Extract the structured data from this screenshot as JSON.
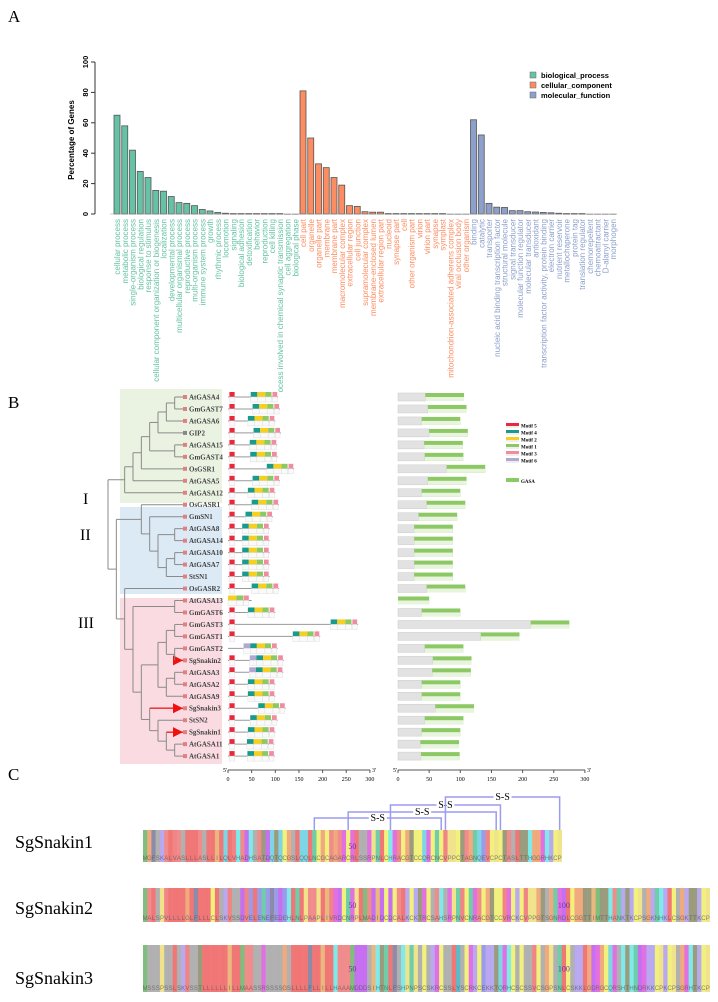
{
  "panel_labels": {
    "a": "A",
    "b": "B",
    "c": "C"
  },
  "chart_data": {
    "type": "bar",
    "ylabel": "Percentage of Genes",
    "xlabel": "",
    "ylim": [
      0,
      100
    ],
    "yticks": [
      0,
      20,
      40,
      60,
      80,
      100
    ],
    "grid": false,
    "legend_position": "top-right",
    "series": [
      {
        "name": "biological_process",
        "color": "#66c2a5",
        "categories": [
          "cellular process",
          "metabolic process",
          "single-organism process",
          "biological regulation",
          "response to stimulus",
          "cellular component organization or biogenesis",
          "localization",
          "developmental process",
          "multicellular organismal process",
          "reproductive process",
          "multi-organism process",
          "immune system process",
          "growth",
          "rhythmic process",
          "locomotion",
          "signaling",
          "biological adhesion",
          "detoxification",
          "behavior",
          "reproduction",
          "cell killing",
          "ocess involved in chemical synaptic transmission",
          "cell aggregation",
          "biological phase"
        ],
        "values": [
          65,
          58,
          42,
          28,
          24,
          15.5,
          15,
          11.5,
          7.5,
          7,
          5.5,
          3,
          2,
          1,
          0.5,
          0.3,
          0.3,
          0.3,
          0.3,
          0.3,
          0.3,
          0.3,
          0,
          0
        ]
      },
      {
        "name": "cellular_component",
        "color": "#fc8d62",
        "categories": [
          "cell part",
          "organelle",
          "organelle part",
          "membrane",
          "membrane part",
          "macromolecular complex",
          "extracellular region",
          "cell junction",
          "supramolecular complex",
          "membrane-enclosed lumen",
          "extracellular region part",
          "nucleoid",
          "synapse part",
          "cell",
          "other organism part",
          "virion",
          "virion part",
          "synapse",
          "symplast",
          "mitochondrion-associated adherens complex",
          "viral occlusion body",
          "other organism"
        ],
        "values": [
          81,
          50,
          33,
          30.5,
          24,
          19,
          5.5,
          5,
          1.5,
          1.2,
          1.2,
          0.3,
          0.3,
          0.3,
          0.3,
          0.3,
          0.3,
          0.3,
          0.3,
          0,
          0,
          0
        ]
      },
      {
        "name": "molecular_function",
        "color": "#8da0cb",
        "categories": [
          "binding",
          "catalytic",
          "transporter",
          "nucleic acid binding transcription factor",
          "structural molecule",
          "signal transducer",
          "molecular function regulator",
          "molecular transducer",
          "antioxidant",
          "transcription factor activity, protein binding",
          "electron carrier",
          "nutrient reservoir",
          "metallochaperone",
          "protein tag",
          "translation regulator",
          "chemorepellent",
          "chemoattractant",
          "D-alanyl carrier",
          "morphogen"
        ],
        "values": [
          62,
          52,
          7,
          4.5,
          4.3,
          2.2,
          2.2,
          1.5,
          1.3,
          1,
          0.8,
          0.5,
          0.3,
          0.3,
          0.3,
          0,
          0,
          0,
          0
        ]
      }
    ]
  },
  "panel_b": {
    "groups": [
      "I",
      "II",
      "III"
    ],
    "group_colors": [
      "#eaf3e2",
      "#dceaf5",
      "#fadbe2"
    ],
    "tree": [
      [
        [
          [
            [
              [
                [
                  [
                    "AtGASA4",
                    "GmGAST7"
                  ],
                  "AtGASA6"
                ],
                "GIP2"
              ],
              [
                "AtGASA15",
                "GmGAST4"
              ]
            ],
            "OsGSR1"
          ],
          "AtGASA5"
        ],
        "AtGASA12"
      ],
      [
        [
          "OsGASR1",
          [
            "GmSN1",
            [
              [
                "AtGASA8",
                "AtGASA14"
              ],
              [
                [
                  "AtGASA10",
                  "AtGASA7"
                ],
                "StSN1"
              ]
            ]
          ]
        ],
        [
          "OsGASR2",
          [
            [
              "AtGASA13",
              "GmGAST6"
            ],
            [
              [
                [
                  [
                    "GmGAST3",
                    "GmGAST1"
                  ],
                  [
                    "GmGAST2",
                    "SgSnakin2"
                  ]
                ],
                [
                  [
                    "AtGASA3",
                    "AtGASA2"
                  ],
                  "AtGASA9"
                ]
              ],
              [
                "SgSnakin3",
                [
                  "StSN2",
                  [
                    "SgSnakin1",
                    [
                      "AtGASA11",
                      "AtGASA1"
                    ]
                  ]
                ]
              ]
            ]
          ]
        ]
      ]
    ],
    "highlighted": [
      "SgSnakin2",
      "SgSnakin3",
      "SgSnakin1"
    ],
    "genes": [
      {
        "name": "AtGASA4",
        "length": 106,
        "motifs": [
          "5",
          "4",
          "2",
          "1",
          "3"
        ]
      },
      {
        "name": "GmGAST7",
        "length": 110,
        "motifs": [
          "5",
          "4",
          "2",
          "1",
          "3"
        ]
      },
      {
        "name": "AtGASA6",
        "length": 100,
        "motifs": [
          "5",
          "4",
          "2",
          "1",
          "3"
        ]
      },
      {
        "name": "GIP2",
        "length": 112,
        "motifs": [
          "5",
          "4",
          "2",
          "1",
          "3"
        ]
      },
      {
        "name": "AtGASA15",
        "length": 104,
        "motifs": [
          "5",
          "4",
          "2",
          "1",
          "3"
        ]
      },
      {
        "name": "GmGAST4",
        "length": 105,
        "motifs": [
          "5",
          "4",
          "2",
          "1",
          "3"
        ]
      },
      {
        "name": "OsGSR1",
        "length": 140,
        "motifs": [
          "5",
          "4",
          "2",
          "1",
          "3"
        ]
      },
      {
        "name": "AtGASA5",
        "length": 110,
        "motifs": [
          "5",
          "4",
          "2",
          "1",
          "3"
        ]
      },
      {
        "name": "AtGASA12",
        "length": 100,
        "motifs": [
          "5",
          "4",
          "2",
          "1",
          "3"
        ]
      },
      {
        "name": "OsGASR1",
        "length": 108,
        "motifs": [
          "5",
          "4",
          "2",
          "1",
          "3"
        ]
      },
      {
        "name": "GmSN1",
        "length": 95,
        "motifs": [
          "5",
          "4",
          "2",
          "1",
          "3"
        ]
      },
      {
        "name": "AtGASA8",
        "length": 88,
        "motifs": [
          "5",
          "4",
          "2",
          "1",
          "3"
        ]
      },
      {
        "name": "AtGASA14",
        "length": 88,
        "motifs": [
          "5",
          "4",
          "2",
          "1",
          "3"
        ]
      },
      {
        "name": "AtGASA10",
        "length": 88,
        "motifs": [
          "5",
          "4",
          "2",
          "1",
          "3"
        ]
      },
      {
        "name": "AtGASA7",
        "length": 88,
        "motifs": [
          "5",
          "4",
          "2",
          "1",
          "3"
        ]
      },
      {
        "name": "StSN1",
        "length": 88,
        "motifs": [
          "5",
          "4",
          "2",
          "1",
          "3"
        ]
      },
      {
        "name": "OsGASR2",
        "length": 108,
        "motifs": [
          "5",
          "4",
          "2",
          "1",
          "3"
        ]
      },
      {
        "name": "AtGASA13",
        "length": 50,
        "motifs": [
          "2",
          "1",
          "3"
        ]
      },
      {
        "name": "GmGAST6",
        "length": 100,
        "motifs": [
          "5",
          "4",
          "2",
          "1",
          "3"
        ]
      },
      {
        "name": "GmGAST3",
        "length": 275,
        "motifs": [
          "5",
          "4",
          "2",
          "1",
          "3"
        ]
      },
      {
        "name": "GmGAST1",
        "length": 195,
        "motifs": [
          "5",
          "4",
          "2",
          "1",
          "3"
        ]
      },
      {
        "name": "GmGAST2",
        "length": 105,
        "motifs": [
          "6",
          "4",
          "2",
          "1",
          "3"
        ]
      },
      {
        "name": "SgSnakin2",
        "length": 118,
        "motifs": [
          "5",
          "6",
          "4",
          "2",
          "1",
          "3"
        ]
      },
      {
        "name": "AtGASA3",
        "length": 117,
        "motifs": [
          "5",
          "6",
          "4",
          "2",
          "1",
          "3"
        ]
      },
      {
        "name": "AtGASA2",
        "length": 100,
        "motifs": [
          "5",
          "4",
          "2",
          "1",
          "3"
        ]
      },
      {
        "name": "AtGASA9",
        "length": 100,
        "motifs": [
          "5",
          "4",
          "2",
          "1",
          "3"
        ]
      },
      {
        "name": "SgSnakin3",
        "length": 122,
        "motifs": [
          "5",
          "4",
          "2",
          "1",
          "3"
        ]
      },
      {
        "name": "StSN2",
        "length": 105,
        "motifs": [
          "5",
          "4",
          "2",
          "1",
          "3"
        ]
      },
      {
        "name": "SgSnakin1",
        "length": 100,
        "motifs": [
          "5",
          "4",
          "2",
          "1",
          "3"
        ]
      },
      {
        "name": "AtGASA11",
        "length": 98,
        "motifs": [
          "5",
          "4",
          "2",
          "1",
          "3"
        ]
      },
      {
        "name": "AtGASA1",
        "length": 99,
        "motifs": [
          "5",
          "4",
          "2",
          "1",
          "3"
        ]
      }
    ],
    "motif_legend": [
      {
        "id": "5",
        "label": "Motif 5",
        "color": "#e8283c"
      },
      {
        "id": "4",
        "label": "Motif 4",
        "color": "#1a9a8c"
      },
      {
        "id": "2",
        "label": "Motif 2",
        "color": "#f5d020"
      },
      {
        "id": "1",
        "label": "Motif 1",
        "color": "#8cc864"
      },
      {
        "id": "3",
        "label": "Motif 3",
        "color": "#f08ca0"
      },
      {
        "id": "6",
        "label": "Motif 6",
        "color": "#b0a8d0"
      }
    ],
    "domain_legend": {
      "label": "GASA",
      "color": "#8cc864"
    },
    "axis_ticks": [
      0,
      50,
      100,
      150,
      200,
      250,
      300
    ],
    "axis_start": "5'",
    "axis_end": "3'"
  },
  "panel_c": {
    "bond_label": "S-S",
    "bonds": [
      [
        40,
        70
      ],
      [
        48,
        83
      ],
      [
        58,
        84
      ],
      [
        71,
        98
      ]
    ],
    "rows": [
      {
        "name": "SgSnakin1",
        "sequence": "MGFSKALVASLLLASLLILQLVHADHSATDQTQCGSLQQLNCGCAGARCRLSSRPNLCHRACGTCCQRCNCVPPCTAGNQEVCPCTASLTTHGGRHKCP",
        "markers": [
          50
        ]
      },
      {
        "name": "SgSnakin2",
        "sequence": "MALSPVLLLLGLFLLLCLSKVSSDVELENEFEDEHLNLPAAPLIVRDCNRPLMADIDCDCALKCKTRCSAHSRPNVCNRACGTCCVRCKCVPPGTSGNRDLCGGTTIMTTHANKTKCPSGKNHKLCSGKTTKCP",
        "markers": [
          50,
          100
        ]
      },
      {
        "name": "SgSnakin3",
        "sequence": "MSSSPSSLSKVSSTLLLLLLILLMAASSRSSSSGSLLLLFLLILLHAAAMDDDSIHTNLFSHPNPSCSKRCSSLYSCRKCEKKTQRHCSCSSVCSGPSNLCSKKLGDRGCQRSHTHNDRKKCPKCPSGRHTKCP",
        "markers": [
          50,
          100
        ]
      }
    ]
  }
}
